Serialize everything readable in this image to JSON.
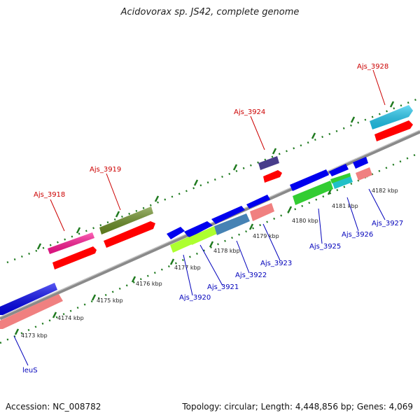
{
  "title": "Acidovorax sp. JS42, complete genome",
  "footer": {
    "accession": "Accession: NC_008782",
    "summary": "Topology: circular; Length: 4,448,856 bp; Genes: 4,069"
  },
  "colors": {
    "backbone": "#8a8a8a",
    "tick": "#1f7a1f",
    "forward_label": "#cc0000",
    "reverse_label": "#0000bb"
  },
  "ticks": [
    "4173 kbp",
    "4174 kbp",
    "4175 kbp",
    "4176 kbp",
    "4177 kbp",
    "4178 kbp",
    "4179 kbp",
    "4180 kbp",
    "4181 kbp",
    "4182 kbp"
  ],
  "forward_genes": [
    {
      "name": "Ajs_3918",
      "color": "#ff1493"
    },
    {
      "name": "Ajs_3919",
      "color": "#6b8e23"
    },
    {
      "name": "Ajs_3924",
      "color": "#483d8b"
    },
    {
      "name": "Ajs_3928",
      "color": "#1ec8f0"
    }
  ],
  "reverse_genes": [
    {
      "name": "leuS",
      "color": "#0000ee"
    },
    {
      "name": "Ajs_3920",
      "color": "#adff2f"
    },
    {
      "name": "Ajs_3921",
      "color": "#adff2f"
    },
    {
      "name": "Ajs_3922",
      "color": "#4682b4"
    },
    {
      "name": "Ajs_3923",
      "color": "#f08080"
    },
    {
      "name": "Ajs_3925",
      "color": "#32cd32"
    },
    {
      "name": "Ajs_3926",
      "color": "#20c0c8"
    },
    {
      "name": "Ajs_3927",
      "color": "#f08080"
    }
  ]
}
